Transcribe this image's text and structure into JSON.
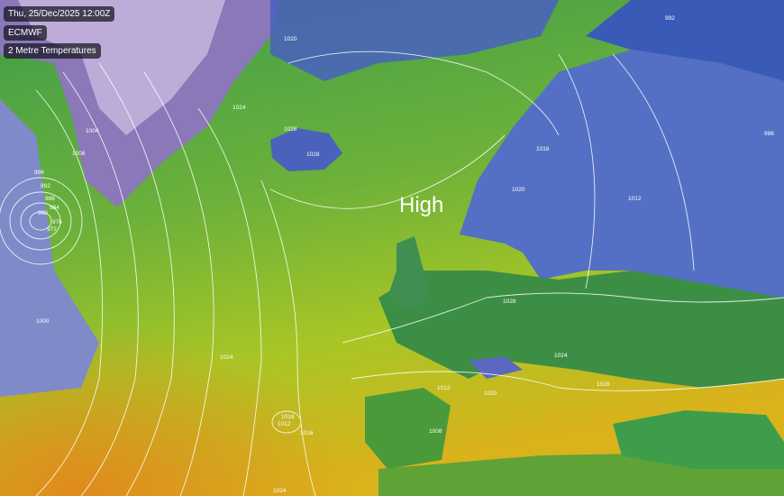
{
  "overlay": {
    "datetime": "Thu, 25/Dec/2025 12:00Z",
    "model": "ECMWF",
    "layer": "2 Metre Temperatures"
  },
  "pressure_systems": [
    {
      "label": "High"
    }
  ],
  "isobar_labels": [
    "1028",
    "1028",
    "1024",
    "1020",
    "1016",
    "1012",
    "1008",
    "1004",
    "1000",
    "996",
    "992",
    "988",
    "984",
    "980",
    "976",
    "972",
    "1024",
    "1020",
    "1016",
    "1012",
    "1016",
    "1024",
    "1028",
    "1020",
    "1012",
    "1008",
    "1024",
    "996",
    "992",
    "1016"
  ],
  "colors": {
    "cold": "#3a4fb5",
    "very_cold": "#b9a8d8",
    "mild": "#4fa33a",
    "warm": "#9cc52a",
    "hot": "#e0a020",
    "isobar": "#ffffff"
  }
}
